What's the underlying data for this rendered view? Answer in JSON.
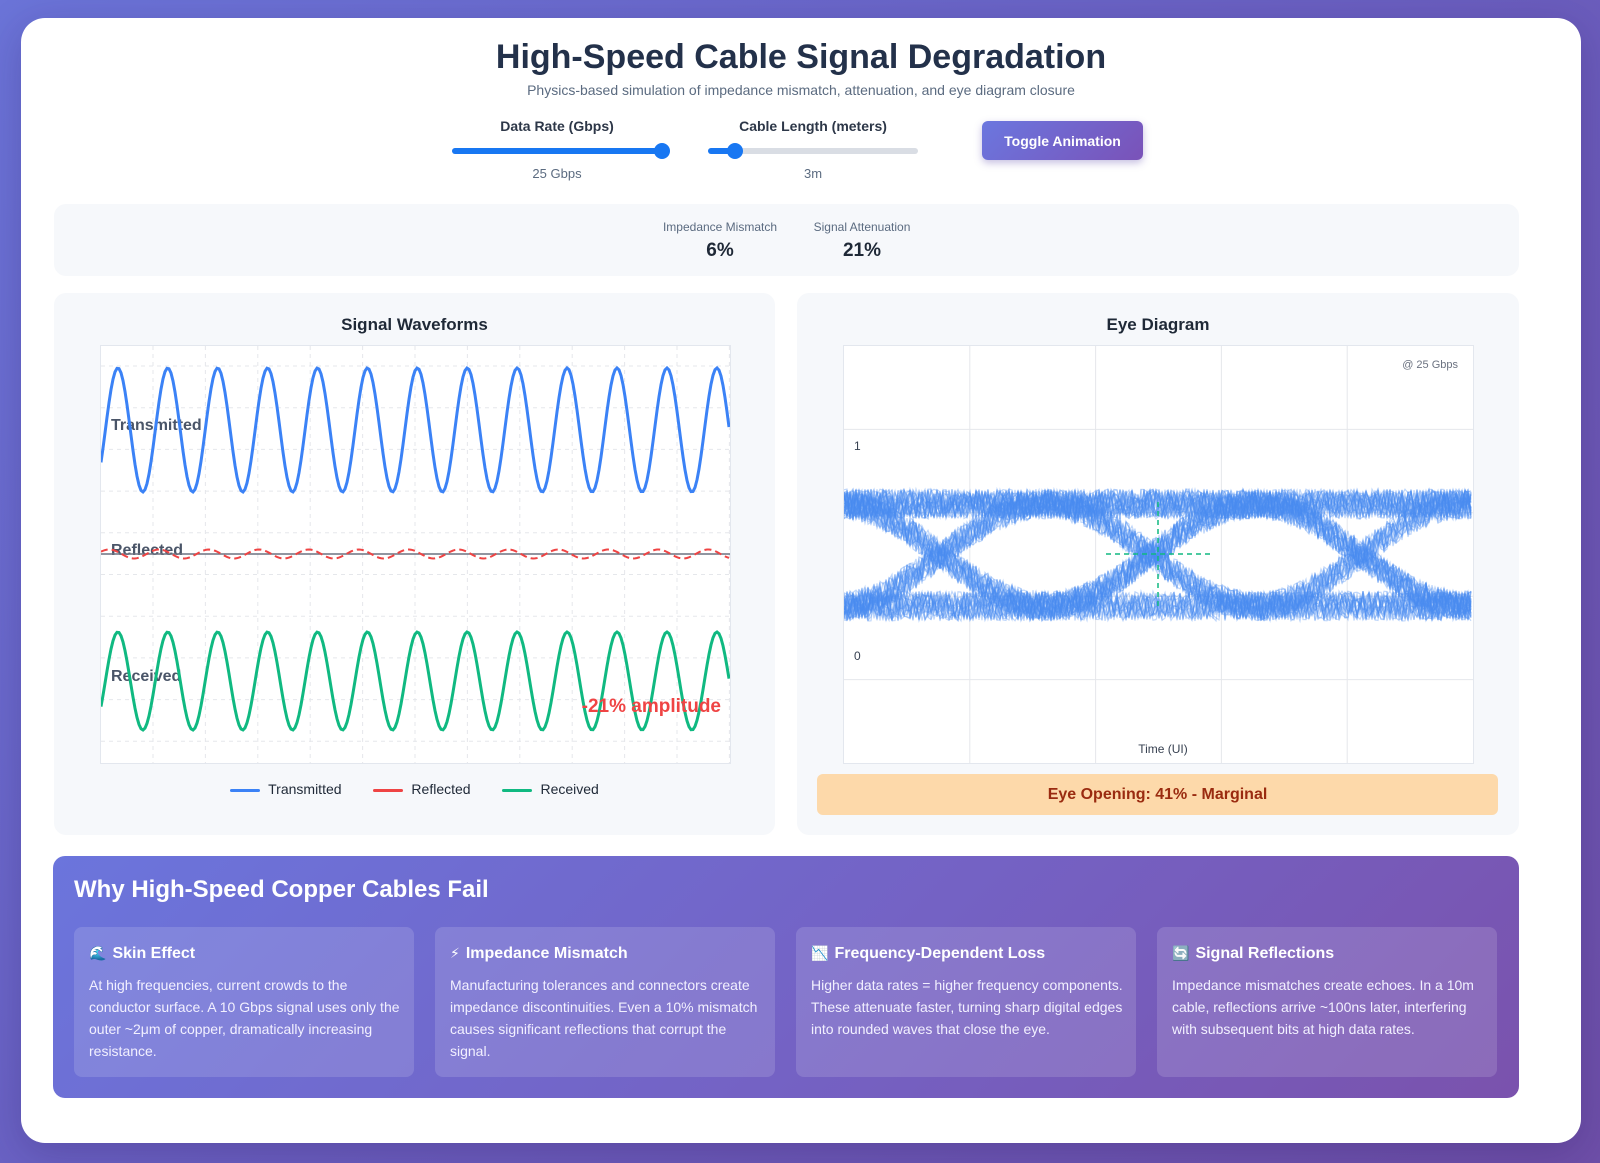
{
  "header": {
    "title": "High-Speed Cable Signal Degradation",
    "subtitle": "Physics-based simulation of impedance mismatch, attenuation, and eye diagram closure"
  },
  "controls": {
    "data_rate": {
      "label": "Data Rate (Gbps)",
      "value_text": "25 Gbps",
      "value": 25,
      "fraction": 1.0
    },
    "cable_length": {
      "label": "Cable Length (meters)",
      "value_text": "3m",
      "value": 3,
      "fraction": 0.13
    },
    "toggle_label": "Toggle Animation"
  },
  "metrics": {
    "impedance": {
      "label": "Impedance Mismatch",
      "value": "6%"
    },
    "attenuation": {
      "label": "Signal Attenuation",
      "value": "21%"
    }
  },
  "waveforms": {
    "title": "Signal Waveforms",
    "labels": {
      "transmitted": "Transmitted",
      "reflected": "Reflected",
      "received": "Received"
    },
    "annotation": "-21% amplitude",
    "legend": [
      {
        "label": "Transmitted",
        "color": "#3b82f6"
      },
      {
        "label": "Reflected",
        "color": "#ef4444"
      },
      {
        "label": "Received",
        "color": "#10b981"
      }
    ]
  },
  "eye": {
    "title": "Eye Diagram",
    "rate_label": "@ 25 Gbps",
    "level_high": "1",
    "level_low": "0",
    "xlabel": "Time (UI)",
    "status": "Eye Opening: 41% - Marginal",
    "opening": 0.41
  },
  "colors": {
    "transmitted": "#3b82f6",
    "reflected": "#ef4444",
    "received": "#10b981",
    "eye_trace": "#4a8cf0",
    "status_bg": "#fdd9aa",
    "status_text": "#9a2b10",
    "accent": "#1877f2"
  },
  "info": {
    "title": "Why High-Speed Copper Cables Fail",
    "cards": [
      {
        "icon": "🌊",
        "title": "Skin Effect",
        "text": "At high frequencies, current crowds to the conductor surface. A 10 Gbps signal uses only the outer ~2μm of copper, dramatically increasing resistance."
      },
      {
        "icon": "⚡",
        "title": "Impedance Mismatch",
        "text": "Manufacturing tolerances and connectors create impedance discontinuities. Even a 10% mismatch causes significant reflections that corrupt the signal."
      },
      {
        "icon": "📉",
        "title": "Frequency-Dependent Loss",
        "text": "Higher data rates = higher frequency components. These attenuate faster, turning sharp digital edges into rounded waves that close the eye."
      },
      {
        "icon": "🔄",
        "title": "Signal Reflections",
        "text": "Impedance mismatches create echoes. In a 10m cable, reflections arrive ~100ns later, interfering with subsequent bits at high data rates."
      }
    ]
  }
}
